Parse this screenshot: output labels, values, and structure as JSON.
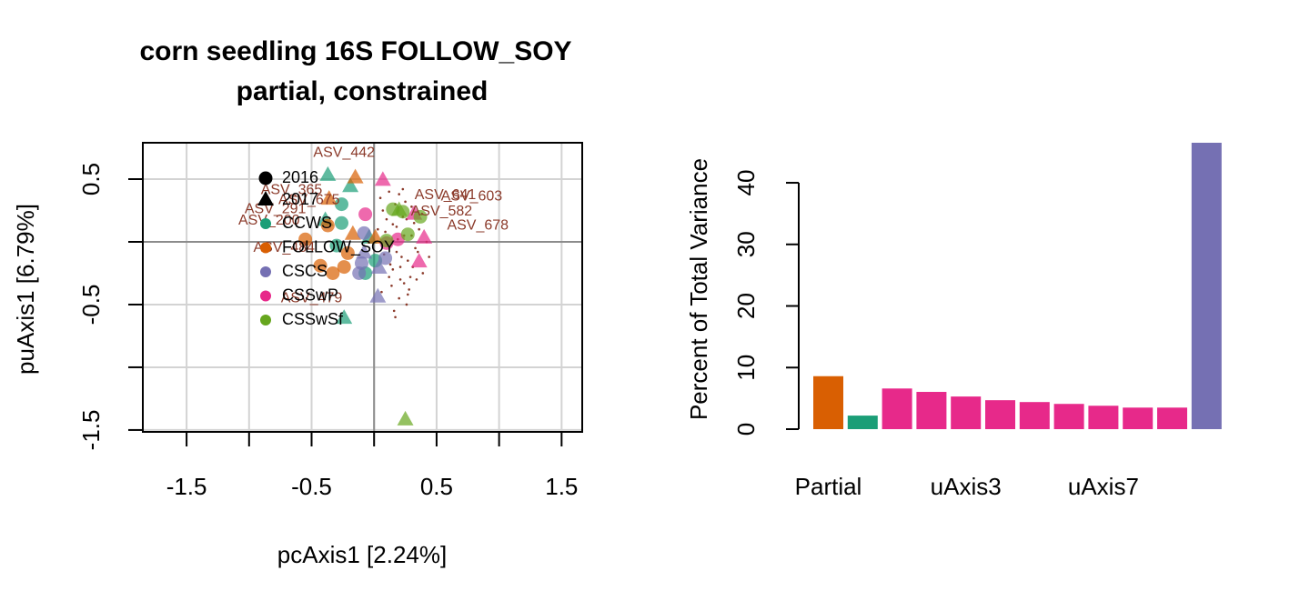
{
  "chart_data": [
    {
      "type": "scatter",
      "title": "corn seedling 16S FOLLOW_SOY",
      "subtitle": "partial, constrained",
      "xlabel": "pcAxis1 [2.24%]",
      "ylabel": "puAxis1 [6.79%]",
      "xlim": [
        -1.85,
        1.665
      ],
      "ylim": [
        -1.515,
        0.79
      ],
      "xticks": [
        -1.5,
        -0.5,
        0.5,
        1.5
      ],
      "xminor_ticks": [
        -1,
        0,
        1
      ],
      "yticks": [
        -1.5,
        -0.5,
        0.5
      ],
      "yminor_ticks": [
        -1,
        0
      ],
      "grid": true,
      "zero_lines": true,
      "shapes": [
        {
          "name": "2016",
          "shape": "circle"
        },
        {
          "name": "2017",
          "shape": "triangle"
        }
      ],
      "series": [
        {
          "name": "CCWS",
          "color": "#1B9E77",
          "x": [
            -0.37,
            -0.19,
            -0.39,
            -0.24,
            -0.04,
            -0.26,
            -0.26,
            -0.3,
            -0.07,
            0.01
          ],
          "y": [
            0.53,
            0.44,
            0.17,
            -0.61,
            0.03,
            0.3,
            0.15,
            -0.03,
            -0.25,
            -0.15
          ],
          "shape": [
            "triangle",
            "triangle",
            "triangle",
            "triangle",
            "triangle",
            "circle",
            "circle",
            "circle",
            "circle",
            "circle"
          ]
        },
        {
          "name": "FOLLOW_SOY",
          "color": "#D95F02",
          "x": [
            -0.15,
            -0.17,
            0.01,
            -0.36,
            -0.43,
            -0.33,
            -0.24,
            -0.21,
            -0.37,
            -0.55
          ],
          "y": [
            0.51,
            0.06,
            0.03,
            0.34,
            -0.19,
            -0.25,
            -0.2,
            -0.09,
            0.13,
            0.02
          ],
          "shape": [
            "triangle",
            "triangle",
            "triangle",
            "triangle",
            "circle",
            "circle",
            "circle",
            "circle",
            "circle",
            "circle"
          ]
        },
        {
          "name": "CSCS",
          "color": "#7570B3",
          "x": [
            0.03,
            -0.08,
            0.04,
            -0.1,
            -0.08,
            0.09,
            -0.12
          ],
          "y": [
            -0.44,
            -0.09,
            -0.21,
            -0.17,
            0.07,
            -0.13,
            -0.25
          ],
          "shape": [
            "triangle",
            "triangle",
            "triangle",
            "circle",
            "circle",
            "circle",
            "circle"
          ]
        },
        {
          "name": "CSSwP",
          "color": "#E7298A",
          "x": [
            0.07,
            0.36,
            0.4,
            0.32,
            -0.07,
            0.1,
            0.19
          ],
          "y": [
            0.49,
            -0.16,
            0.03,
            0.22,
            0.22,
            -0.01,
            0.02
          ],
          "shape": [
            "triangle",
            "triangle",
            "triangle",
            "triangle",
            "circle",
            "circle",
            "circle"
          ]
        },
        {
          "name": "CSSwSf",
          "color": "#66A61E",
          "x": [
            0.25,
            0.2,
            0.15,
            0.37,
            0.23,
            0.27,
            0.1
          ],
          "y": [
            -1.42,
            0.25,
            0.26,
            0.2,
            0.24,
            0.06,
            0.01
          ],
          "shape": [
            "triangle",
            "triangle",
            "circle",
            "circle",
            "circle",
            "circle",
            "circle"
          ]
        }
      ],
      "species": {
        "color": "#8B3A2A",
        "x": [
          0.05,
          0.08,
          0.12,
          0.15,
          0.18,
          0.21,
          0.24,
          0.27,
          0.3,
          0.33,
          0.36,
          0.39,
          0.42,
          0.06,
          0.1,
          0.14,
          0.17,
          0.2,
          0.23,
          0.26,
          0.29,
          0.32,
          0.35,
          0.38,
          0.09,
          0.13,
          0.16,
          0.19,
          0.22,
          0.25,
          0.28,
          0.31,
          0.11,
          0.18,
          0.24,
          0.3,
          0.07,
          0.15,
          0.21,
          0.27,
          0.34,
          0.12,
          0.2,
          0.26,
          0.03,
          0.44,
          0.17,
          0.23
        ],
        "y": [
          0.35,
          -0.1,
          0.4,
          -0.22,
          0.12,
          -0.3,
          0.05,
          -0.15,
          0.28,
          -0.05,
          0.1,
          -0.25,
          0.0,
          -0.4,
          0.18,
          -0.35,
          0.3,
          -0.45,
          0.2,
          -0.5,
          -0.28,
          0.15,
          -0.08,
          0.22,
          0.08,
          -0.18,
          -0.55,
          0.02,
          -0.12,
          0.32,
          -0.38,
          -0.2,
          -0.02,
          -0.08,
          -0.33,
          0.05,
          0.25,
          0.14,
          -0.2,
          -0.42,
          -0.3,
          -0.28,
          0.38,
          0.18,
          0.1,
          -0.12,
          -0.6,
          0.42
        ]
      },
      "species_labels": [
        {
          "label": "ASV_442",
          "x": -0.24,
          "y": 0.71
        },
        {
          "label": "ASV_365",
          "x": -0.66,
          "y": 0.41
        },
        {
          "label": "ASV_675",
          "x": -0.52,
          "y": 0.33
        },
        {
          "label": "ASV_291",
          "x": -0.79,
          "y": 0.26
        },
        {
          "label": "ASV_200",
          "x": -0.84,
          "y": 0.17
        },
        {
          "label": "ASV_484",
          "x": -0.72,
          "y": -0.05
        },
        {
          "label": "ASV_479",
          "x": -0.5,
          "y": -0.45
        },
        {
          "label": "ASV_641",
          "x": 0.57,
          "y": 0.37
        },
        {
          "label": "ASV_603",
          "x": 0.78,
          "y": 0.36
        },
        {
          "label": "ASV_582",
          "x": 0.54,
          "y": 0.24
        },
        {
          "label": "ASV_678",
          "x": 0.83,
          "y": 0.13
        }
      ]
    },
    {
      "type": "bar",
      "ylabel": "Percent of Total Variance",
      "categories": [
        "Partial",
        null,
        null,
        null,
        "uAxis3",
        null,
        null,
        null,
        "uAxis7",
        null,
        null,
        null
      ],
      "values": [
        8.6,
        2.2,
        6.6,
        6.05,
        5.3,
        4.7,
        4.4,
        4.1,
        3.8,
        3.5,
        3.5,
        46.5
      ],
      "colors": [
        "#D95F02",
        "#1B9E77",
        "#E7298A",
        "#E7298A",
        "#E7298A",
        "#E7298A",
        "#E7298A",
        "#E7298A",
        "#E7298A",
        "#E7298A",
        "#E7298A",
        "#7570B3"
      ],
      "ylim": [
        0,
        46.5
      ],
      "yticks": [
        0,
        10,
        20,
        30,
        40
      ]
    }
  ]
}
